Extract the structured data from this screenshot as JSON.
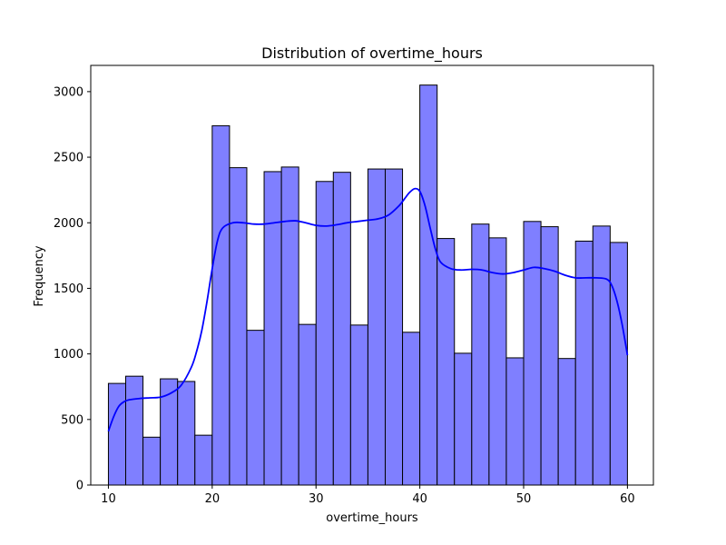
{
  "chart_data": {
    "type": "bar",
    "title": "Distribution of overtime_hours",
    "xlabel": "overtime_hours",
    "ylabel": "Frequency",
    "xlim": [
      8.3,
      62.5
    ],
    "ylim": [
      0,
      3200
    ],
    "xticks": [
      10,
      20,
      30,
      40,
      50,
      60
    ],
    "yticks": [
      0,
      500,
      1000,
      1500,
      2000,
      2500,
      3000
    ],
    "bin_edges": [
      10,
      11.667,
      13.333,
      15,
      16.667,
      18.333,
      20,
      21.667,
      23.333,
      25,
      26.667,
      28.333,
      30,
      31.667,
      33.333,
      35,
      36.667,
      38.333,
      40,
      41.667,
      43.333,
      45,
      46.667,
      48.333,
      50,
      51.667,
      53.333,
      55,
      56.667,
      58.333,
      60
    ],
    "values": [
      775,
      830,
      365,
      810,
      790,
      380,
      2740,
      2420,
      1180,
      2390,
      2425,
      1225,
      2315,
      2385,
      1220,
      2410,
      2410,
      1165,
      3050,
      1880,
      1005,
      1990,
      1885,
      970,
      2010,
      1970,
      965,
      1860,
      1975,
      1850
    ],
    "kde": {
      "x": [
        10,
        10.5,
        11,
        11.5,
        12,
        13,
        14,
        15,
        16,
        17,
        18,
        18.5,
        19,
        19.5,
        20,
        20.5,
        21,
        22,
        23,
        24,
        25,
        26,
        27,
        28,
        29,
        30,
        31,
        32,
        33,
        34,
        35,
        36,
        37,
        38,
        38.5,
        39,
        39.5,
        40,
        40.5,
        41,
        41.5,
        42,
        43,
        44,
        45,
        46,
        47,
        48,
        49,
        50,
        51,
        52,
        53,
        54,
        55,
        56,
        57,
        58,
        58.5,
        59,
        59.5,
        60
      ],
      "y": [
        410,
        520,
        600,
        635,
        650,
        660,
        665,
        670,
        700,
        760,
        900,
        1020,
        1180,
        1400,
        1650,
        1860,
        1960,
        2000,
        2000,
        1990,
        1990,
        2000,
        2010,
        2015,
        2000,
        1980,
        1975,
        1985,
        2000,
        2010,
        2020,
        2030,
        2060,
        2130,
        2180,
        2230,
        2260,
        2240,
        2130,
        1960,
        1800,
        1700,
        1650,
        1640,
        1645,
        1640,
        1620,
        1610,
        1620,
        1640,
        1660,
        1650,
        1630,
        1600,
        1580,
        1580,
        1580,
        1570,
        1520,
        1400,
        1220,
        990
      ]
    },
    "bar_color": "#7f7fff",
    "bar_edge_color": "#000000",
    "kde_color": "#0000ff",
    "grid": false,
    "legend": "none"
  }
}
